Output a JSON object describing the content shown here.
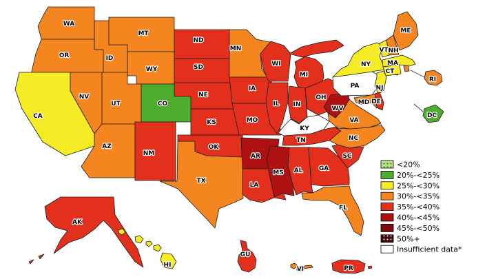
{
  "legend": {
    "categories": [
      {
        "key": "lt20",
        "label": "<20%",
        "color": "#badf8e",
        "pattern": "dots",
        "pattern_dot_color": "#2e6b10"
      },
      {
        "key": "20-25",
        "label": "20%-<25%",
        "color": "#4ead2e"
      },
      {
        "key": "25-30",
        "label": "25%-<30%",
        "color": "#f5ec25"
      },
      {
        "key": "30-35",
        "label": "30%-<35%",
        "color": "#f5861f"
      },
      {
        "key": "35-40",
        "label": "35%-<40%",
        "color": "#e2301c"
      },
      {
        "key": "40-45",
        "label": "40%-<45%",
        "color": "#ad1112"
      },
      {
        "key": "45-50",
        "label": "45%-<50%",
        "color": "#7a0e0e"
      },
      {
        "key": "50plus",
        "label": "50%+",
        "color": "#3f0708",
        "pattern": "dots",
        "pattern_dot_color": "#ffffff"
      },
      {
        "key": "insufficient",
        "label": "Insufficient data*",
        "color": "#ffffff"
      }
    ]
  },
  "map": {
    "states": [
      {
        "abbr": "WA",
        "category": "30-35"
      },
      {
        "abbr": "OR",
        "category": "30-35"
      },
      {
        "abbr": "CA",
        "category": "25-30"
      },
      {
        "abbr": "ID",
        "category": "30-35"
      },
      {
        "abbr": "MT",
        "category": "30-35"
      },
      {
        "abbr": "WY",
        "category": "30-35"
      },
      {
        "abbr": "NV",
        "category": "30-35"
      },
      {
        "abbr": "UT",
        "category": "30-35"
      },
      {
        "abbr": "CO",
        "category": "20-25"
      },
      {
        "abbr": "AZ",
        "category": "30-35"
      },
      {
        "abbr": "NM",
        "category": "35-40"
      },
      {
        "abbr": "TX",
        "category": "30-35"
      },
      {
        "abbr": "OK",
        "category": "35-40"
      },
      {
        "abbr": "KS",
        "category": "35-40"
      },
      {
        "abbr": "NE",
        "category": "35-40"
      },
      {
        "abbr": "SD",
        "category": "35-40"
      },
      {
        "abbr": "ND",
        "category": "35-40"
      },
      {
        "abbr": "MN",
        "category": "30-35"
      },
      {
        "abbr": "IA",
        "category": "35-40"
      },
      {
        "abbr": "MO",
        "category": "35-40"
      },
      {
        "abbr": "AR",
        "category": "40-45"
      },
      {
        "abbr": "LA",
        "category": "35-40"
      },
      {
        "abbr": "WI",
        "category": "35-40"
      },
      {
        "abbr": "IL",
        "category": "35-40"
      },
      {
        "abbr": "MS",
        "category": "40-45"
      },
      {
        "abbr": "MI",
        "category": "35-40"
      },
      {
        "abbr": "IN",
        "category": "35-40"
      },
      {
        "abbr": "OH",
        "category": "35-40"
      },
      {
        "abbr": "KY",
        "category": "insufficient"
      },
      {
        "abbr": "TN",
        "category": "35-40"
      },
      {
        "abbr": "AL",
        "category": "35-40"
      },
      {
        "abbr": "GA",
        "category": "35-40"
      },
      {
        "abbr": "FL",
        "category": "30-35"
      },
      {
        "abbr": "SC",
        "category": "35-40"
      },
      {
        "abbr": "NC",
        "category": "30-35"
      },
      {
        "abbr": "VA",
        "category": "30-35"
      },
      {
        "abbr": "WV",
        "category": "40-45"
      },
      {
        "abbr": "PA",
        "category": "insufficient"
      },
      {
        "abbr": "NY",
        "category": "25-30"
      },
      {
        "abbr": "ME",
        "category": "30-35"
      },
      {
        "abbr": "VT",
        "category": "25-30"
      },
      {
        "abbr": "NH",
        "category": "30-35"
      },
      {
        "abbr": "MA",
        "category": "25-30"
      },
      {
        "abbr": "CT",
        "category": "25-30"
      },
      {
        "abbr": "RI",
        "category": "30-35"
      },
      {
        "abbr": "NJ",
        "category": "25-30"
      },
      {
        "abbr": "MD",
        "category": "30-35"
      },
      {
        "abbr": "DE",
        "category": "35-40"
      },
      {
        "abbr": "DC",
        "category": "20-25"
      },
      {
        "abbr": "AK",
        "category": "35-40"
      },
      {
        "abbr": "HI",
        "category": "25-30"
      },
      {
        "abbr": "GU",
        "category": "35-40"
      },
      {
        "abbr": "VI",
        "category": "30-35"
      },
      {
        "abbr": "PR",
        "category": "35-40"
      }
    ]
  }
}
